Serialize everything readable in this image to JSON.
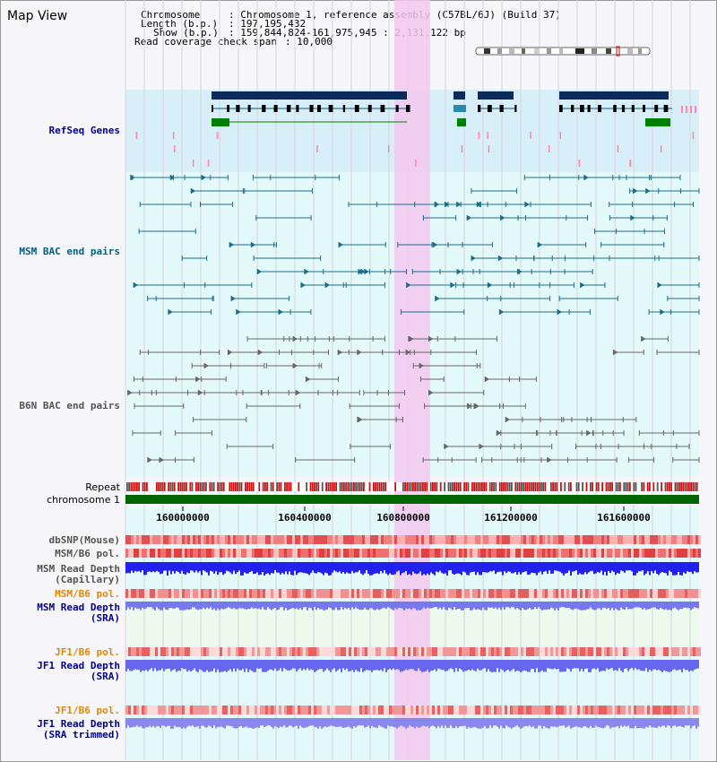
{
  "page": {
    "title": "Map View"
  },
  "info": {
    "chromosome_label": "Chromosome",
    "chromosome_value": ": Chromosome 1, reference assembly (C57BL/6J) (Build 37)",
    "length_label": "Length (b.p.)",
    "length_value": ": 197,195,432",
    "show_label": "Show (b.p.)",
    "show_value": ": 159,844,824-161,975,945 : 2,131,122 bp",
    "coverage_label": "Read coverage check span",
    "coverage_value": ": 10,000"
  },
  "tracks": {
    "refseq": {
      "label": "RefSeq Genes",
      "color": "#00008b"
    },
    "msm_bac": {
      "label": "MSM BAC end pairs",
      "color": "#006080"
    },
    "b6n_bac": {
      "label": "B6N BAC end pairs",
      "color": "#555555"
    },
    "repeat": {
      "label": "Repeat"
    },
    "chromosome": {
      "label": "chromosome 1",
      "color": "#006600"
    },
    "dbsnp": {
      "label": "dbSNP(Mouse)"
    },
    "msm_b6_pol_1": {
      "label": "MSM/B6 pol."
    },
    "msm_read_depth_cap_1": {
      "label": "MSM Read Depth"
    },
    "msm_read_depth_cap_2": {
      "label": "(Capillary)"
    },
    "msm_b6_pol_2": {
      "label": "MSM/B6 pol.",
      "color": "#e08800"
    },
    "msm_read_depth_sra_1": {
      "label": "MSM Read Depth",
      "color": "#00008b"
    },
    "msm_read_depth_sra_2": {
      "label": "(SRA)",
      "color": "#00008b"
    },
    "jf1_b6_pol_1": {
      "label": "JF1/B6 pol.",
      "color": "#e08800"
    },
    "jf1_read_depth_sra_1": {
      "label": "JF1 Read Depth",
      "color": "#00008b"
    },
    "jf1_read_depth_sra_2": {
      "label": "(SRA)",
      "color": "#00008b"
    },
    "jf1_b6_pol_2": {
      "label": "JF1/B6 pol.",
      "color": "#e08800"
    },
    "jf1_read_depth_trim_1": {
      "label": "JF1 Read Depth",
      "color": "#00008b"
    },
    "jf1_read_depth_trim_2": {
      "label": "(SRA trimmed)",
      "color": "#00008b"
    }
  },
  "axis": {
    "tick_labels": [
      "160000000",
      "160400000",
      "160800000",
      "161200000",
      "161600000"
    ]
  },
  "highlight": {
    "color": "#f4c8f0"
  }
}
